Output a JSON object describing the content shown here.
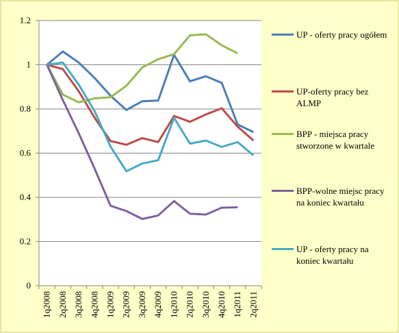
{
  "chart_data": {
    "type": "line",
    "categories": [
      "1q2008",
      "2q2008",
      "3q2008",
      "4q2008",
      "1q2009",
      "2q2009",
      "3q2009",
      "4q2009",
      "1q2010",
      "2q2010",
      "3q2010",
      "4q2010",
      "1q2011",
      "2q2011"
    ],
    "ylim": [
      0,
      1.2
    ],
    "yticks": [
      0,
      0.2,
      0.4,
      0.6,
      0.8,
      1,
      1.2
    ],
    "grid": true,
    "legend": "right",
    "series": [
      {
        "name": "UP - oferty pracy ogółem",
        "color": "#4a7ebb",
        "values": [
          1,
          1.06,
          1.01,
          0.94,
          0.86,
          0.795,
          0.835,
          0.838,
          1.045,
          0.925,
          0.948,
          0.918,
          0.73,
          0.695
        ]
      },
      {
        "name": "UP-oferty pracy bez ALMP",
        "color": "#be4b48",
        "values": [
          1,
          0.98,
          0.88,
          0.76,
          0.655,
          0.638,
          0.668,
          0.65,
          0.768,
          0.742,
          0.775,
          0.803,
          0.72,
          0.657
        ]
      },
      {
        "name": "BPP - miejsca pracy stworzone w kwartale",
        "color": "#98b954",
        "values": [
          1,
          0.865,
          0.83,
          0.848,
          0.853,
          0.905,
          0.988,
          1.025,
          1.048,
          1.133,
          1.138,
          1.088,
          1.052,
          null
        ]
      },
      {
        "name": "BPP-wolne miejsc pracy na koniec kwartału",
        "color": "#7d60a0",
        "values": [
          1,
          0.84,
          0.69,
          0.53,
          0.362,
          0.338,
          0.302,
          0.318,
          0.383,
          0.326,
          0.322,
          0.353,
          0.355,
          null
        ]
      },
      {
        "name": "UP - oferty pracy na koniec kwartału",
        "color": "#46aac5",
        "values": [
          1,
          1.01,
          0.91,
          0.79,
          0.63,
          0.518,
          0.553,
          0.568,
          0.76,
          0.643,
          0.657,
          0.628,
          0.65,
          0.59
        ]
      }
    ]
  }
}
